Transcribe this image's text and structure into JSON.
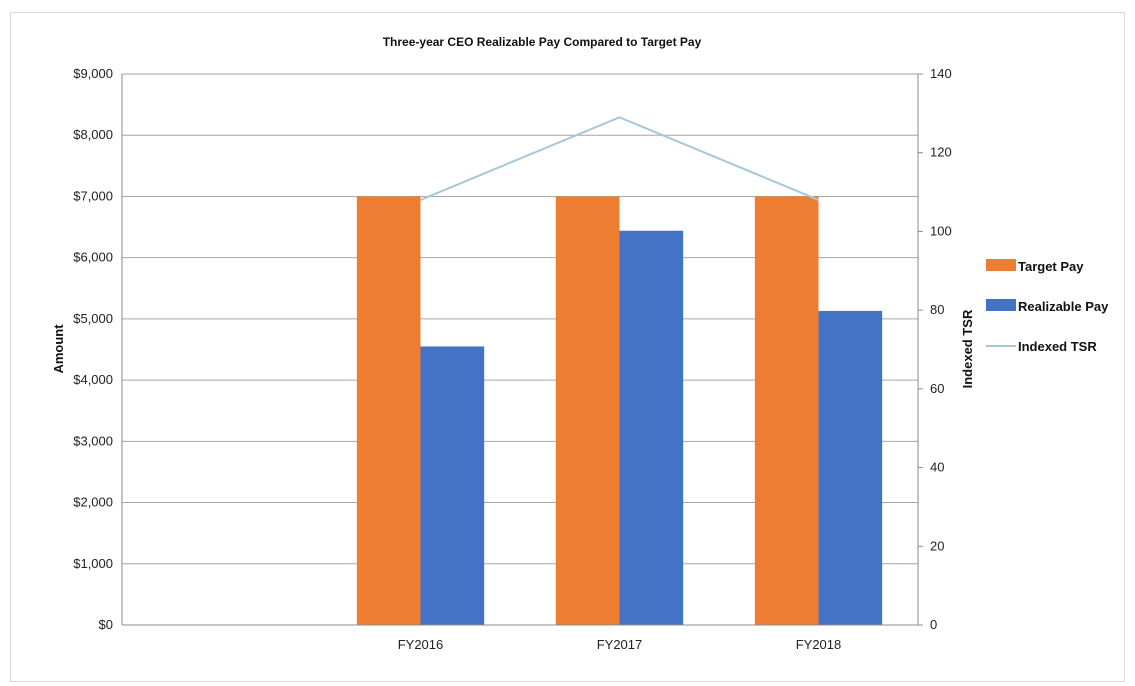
{
  "chart_data": {
    "type": "bar",
    "title": "Three-year CEO Realizable Pay Compared to Target Pay",
    "ylabel": "Amount",
    "y2label": "Indexed TSR",
    "categories": [
      "FY2016",
      "FY2017",
      "FY2018"
    ],
    "ylim": [
      0,
      9000
    ],
    "y_ticks": [
      "$0",
      "$1,000",
      "$2,000",
      "$3,000",
      "$4,000",
      "$5,000",
      "$6,000",
      "$7,000",
      "$8,000",
      "$9,000"
    ],
    "y2lim": [
      0,
      140
    ],
    "y2_ticks": [
      "0",
      "20",
      "40",
      "60",
      "80",
      "100",
      "120",
      "140"
    ],
    "grid": true,
    "legend_position": "right",
    "series": [
      {
        "name": "Target Pay",
        "type": "bar",
        "axis": "left",
        "color": "#ED7D31",
        "values": [
          7000,
          7000,
          7000
        ]
      },
      {
        "name": "Realizable Pay",
        "type": "bar",
        "axis": "left",
        "color": "#4472C4",
        "values": [
          4550,
          6440,
          5130
        ]
      },
      {
        "name": "Indexed TSR",
        "type": "line",
        "axis": "right",
        "color": "#A5C8D8",
        "values": [
          108,
          129,
          108
        ]
      }
    ]
  }
}
